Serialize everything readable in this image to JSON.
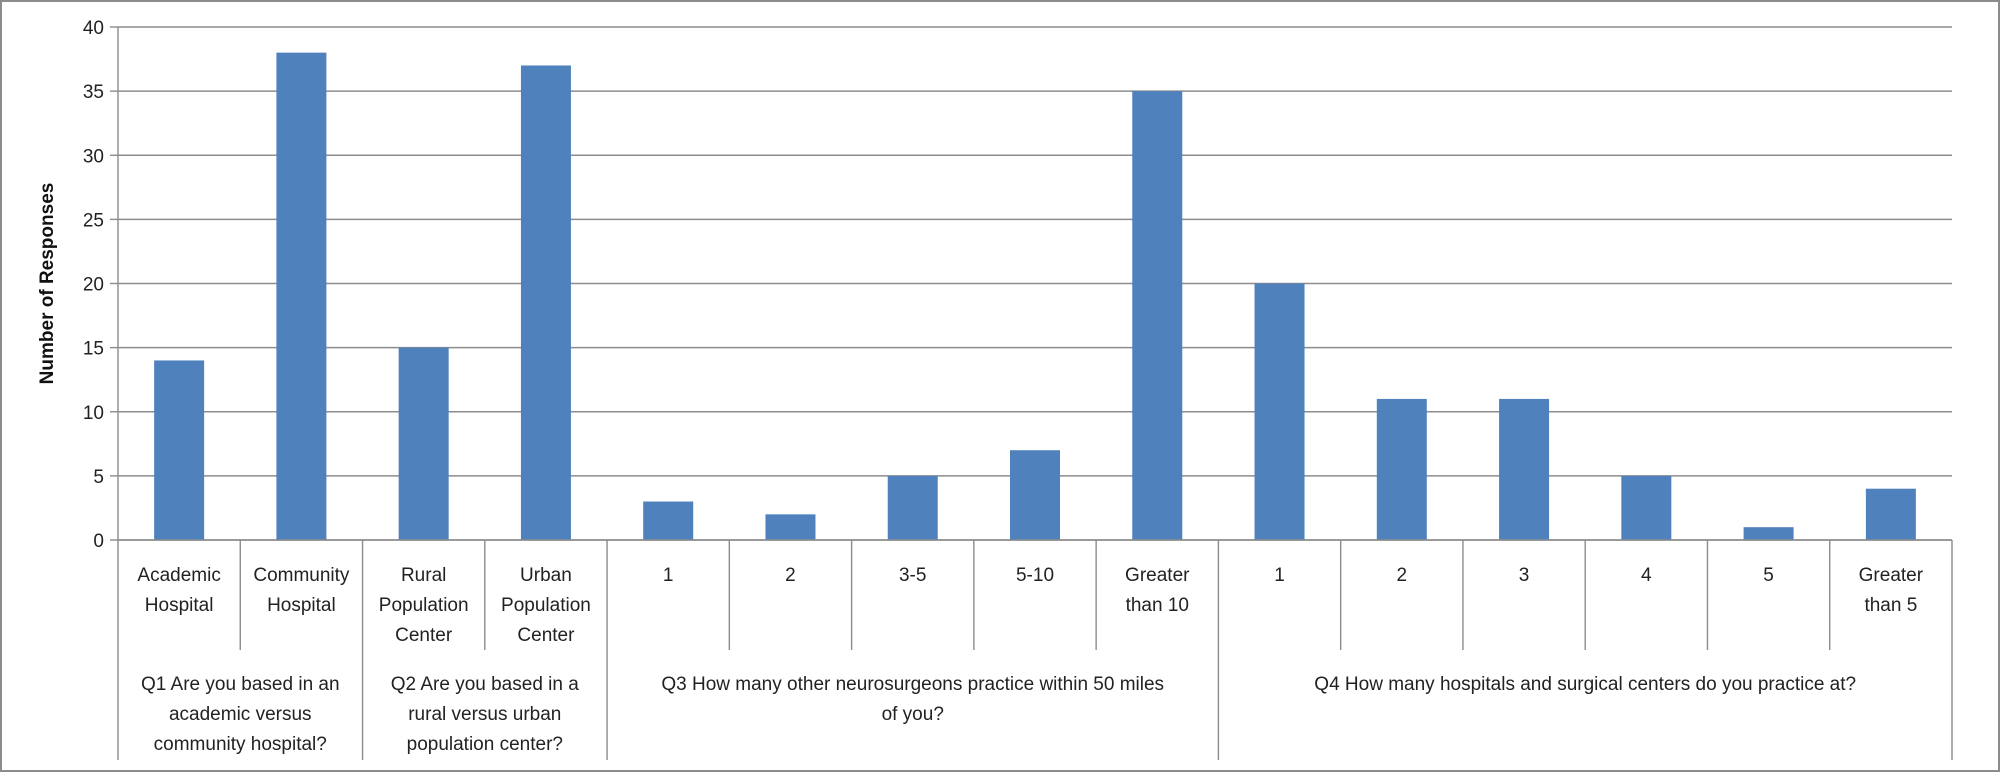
{
  "chart_data": {
    "type": "bar",
    "ylabel": "Number of Responses",
    "xlabel": "",
    "ylim": [
      0,
      40
    ],
    "yticks": [
      0,
      5,
      10,
      15,
      20,
      25,
      30,
      35,
      40
    ],
    "grid": true,
    "bar_color": "#4f81bd",
    "categories": [
      [
        "Academic",
        "Hospital"
      ],
      [
        "Community",
        "Hospital"
      ],
      [
        "Rural",
        "Population",
        "Center"
      ],
      [
        "Urban",
        "Population",
        "Center"
      ],
      [
        "1"
      ],
      [
        "2"
      ],
      [
        "3-5"
      ],
      [
        "5-10"
      ],
      [
        "Greater",
        "than 10"
      ],
      [
        "1"
      ],
      [
        "2"
      ],
      [
        "3"
      ],
      [
        "4"
      ],
      [
        "5"
      ],
      [
        "Greater",
        "than 5"
      ]
    ],
    "values": [
      14,
      38,
      15,
      37,
      3,
      2,
      5,
      7,
      35,
      20,
      11,
      11,
      5,
      1,
      4
    ],
    "groups": [
      {
        "label": [
          "Q1 Are you based in an",
          "academic versus",
          "community hospital?"
        ],
        "count": 2
      },
      {
        "label": [
          "Q2 Are you based in a",
          "rural versus urban",
          "population center?"
        ],
        "count": 2
      },
      {
        "label": [
          "Q3 How many other neurosurgeons practice within 50 miles",
          "of you?"
        ],
        "count": 5
      },
      {
        "label": [
          "Q4 How many hospitals and surgical centers do you practice at?"
        ],
        "count": 6
      }
    ]
  }
}
